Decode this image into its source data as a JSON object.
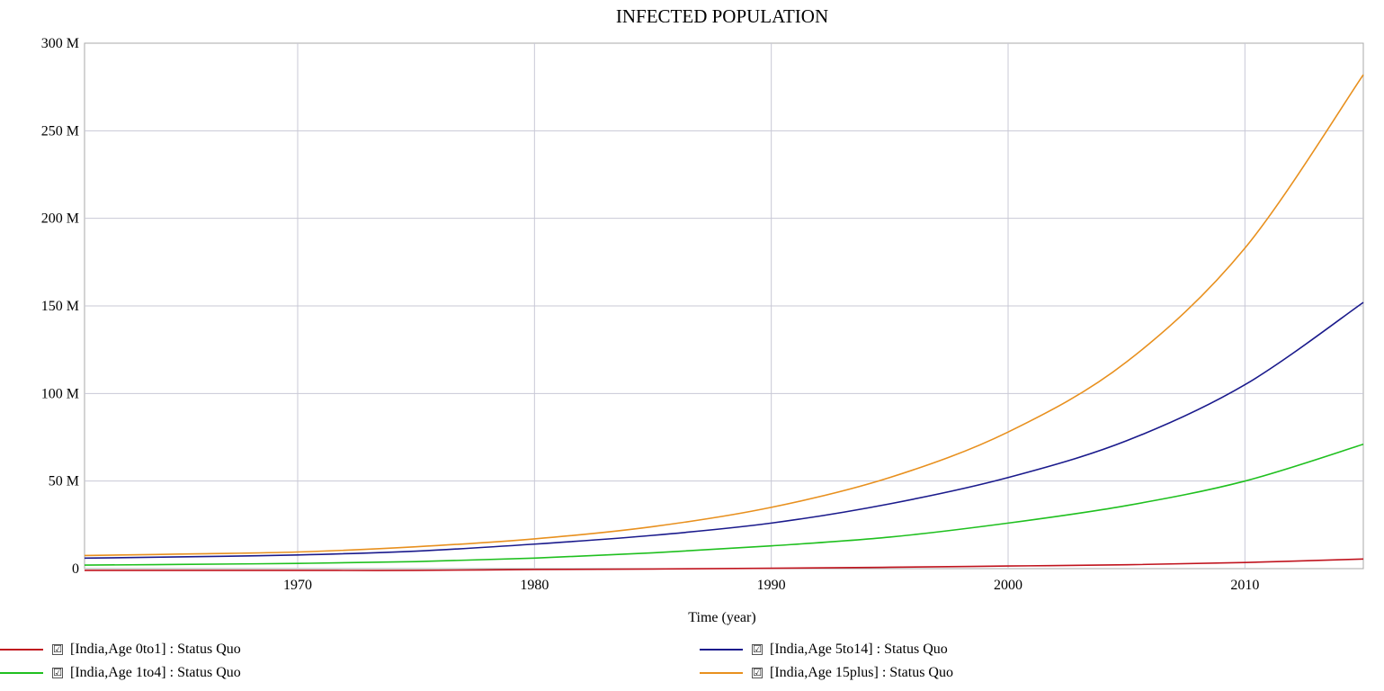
{
  "chart_data": {
    "type": "line",
    "title": "INFECTED POPULATION",
    "xlabel": "Time (year)",
    "ylabel": "",
    "xlim": [
      1961,
      2015
    ],
    "ylim": [
      0,
      300
    ],
    "x_ticks": [
      1970,
      1980,
      1990,
      2000,
      2010
    ],
    "y_ticks": [
      0,
      50,
      100,
      150,
      200,
      250,
      300
    ],
    "y_tick_labels": [
      "0",
      "50 M",
      "100 M",
      "150 M",
      "200 M",
      "250 M",
      "300 M"
    ],
    "grid": true,
    "legend_position": "bottom",
    "x": [
      1961,
      1965,
      1970,
      1975,
      1980,
      1985,
      1990,
      1995,
      2000,
      2005,
      2010,
      2015
    ],
    "series": [
      {
        "name": "[India,Age 0to1] : Status Quo",
        "color": "#c0141e",
        "values": [
          -1,
          -1,
          -1,
          -1,
          -0.5,
          -0.2,
          0.2,
          0.8,
          1.5,
          2.2,
          3.5,
          5.5
        ]
      },
      {
        "name": "[India,Age 1to4] : Status Quo",
        "color": "#1fc01f",
        "values": [
          2,
          2.4,
          3,
          4,
          6,
          9,
          13,
          18,
          26,
          36,
          50,
          71
        ]
      },
      {
        "name": "[India,Age 5to14] : Status Quo",
        "color": "#1a1a8c",
        "values": [
          6,
          6.7,
          7.8,
          10,
          14,
          19,
          26,
          37,
          52,
          73,
          105,
          152
        ]
      },
      {
        "name": "[India,Age 15plus] : Status Quo",
        "color": "#e8901e",
        "values": [
          7.5,
          8.3,
          9.5,
          12.5,
          17,
          24,
          35,
          52,
          78,
          118,
          183,
          282
        ]
      }
    ]
  },
  "legend": {
    "items": [
      {
        "label": "[India,Age 0to1] : Status Quo",
        "check": "☑",
        "color": "#c0141e"
      },
      {
        "label": "[India,Age 5to14] : Status Quo",
        "check": "☑",
        "color": "#1a1a8c"
      },
      {
        "label": "[India,Age 1to4] : Status Quo",
        "check": "☑",
        "color": "#1fc01f"
      },
      {
        "label": "[India,Age 15plus] : Status Quo",
        "check": "☑",
        "color": "#e8901e"
      }
    ]
  }
}
